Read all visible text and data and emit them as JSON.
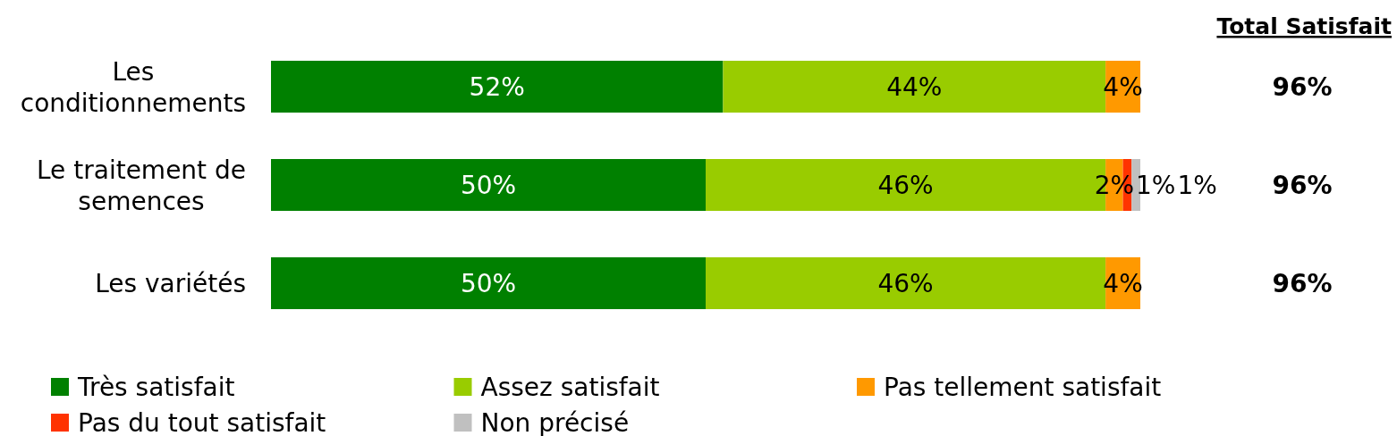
{
  "chart_data": [
    {
      "type": "bar",
      "orientation": "horizontal",
      "stacked": true,
      "categories": [
        "Les conditionnements",
        "Le traitement de semences",
        "Les variétés"
      ],
      "series": [
        {
          "name": "Très satisfait",
          "color": "#008000",
          "values": [
            52,
            50,
            50
          ],
          "value_labels": [
            "52%",
            "50%",
            "50%"
          ]
        },
        {
          "name": "Assez satisfait",
          "color": "#99cc00",
          "values": [
            44,
            46,
            46
          ],
          "value_labels": [
            "44%",
            "46%",
            "46%"
          ]
        },
        {
          "name": "Pas tellement satisfait",
          "color": "#ff9900",
          "values": [
            4,
            2,
            4
          ],
          "value_labels": [
            "4%",
            "2%",
            "4%"
          ]
        },
        {
          "name": "Pas du tout satisfait",
          "color": "#ff3300",
          "values": [
            null,
            1,
            null
          ],
          "value_labels": [
            null,
            "1%",
            null
          ]
        },
        {
          "name": "Non précisé",
          "color": "#c0c0c0",
          "values": [
            null,
            1,
            null
          ],
          "value_labels": [
            null,
            "1%",
            null
          ]
        }
      ],
      "xlim": [
        0,
        100
      ],
      "tick_labels": "y",
      "legend": "bottom"
    },
    {
      "type": "other",
      "title": "Total Satisfait",
      "annotations": [
        "96%",
        "96%",
        "96%"
      ]
    }
  ]
}
